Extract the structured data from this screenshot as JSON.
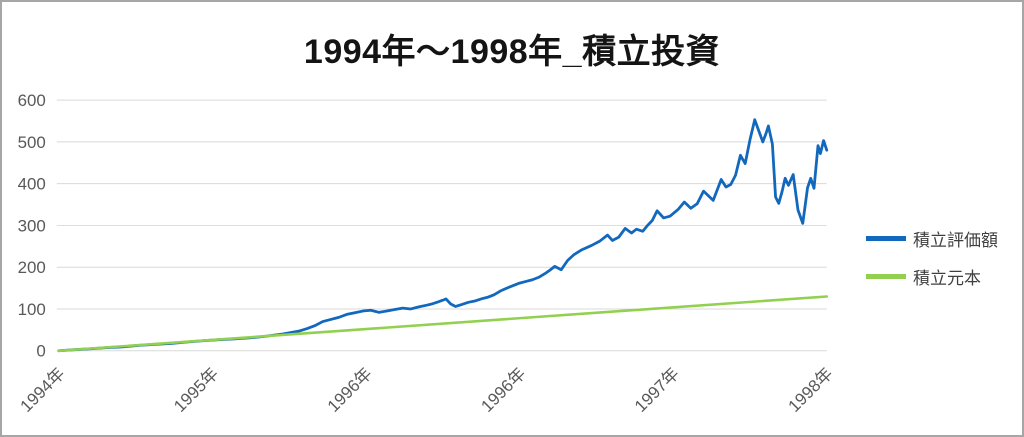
{
  "chart_data": {
    "type": "line",
    "title": "1994年〜1998年_積立投資",
    "x_axis": {
      "unit": "months since Jan 1994",
      "max_month": 48,
      "tick_months": [
        0,
        9.6,
        19.2,
        28.8,
        38.4,
        48
      ],
      "tick_labels": [
        "1994年",
        "1995年",
        "1996年",
        "1996年",
        "1997年",
        "1998年"
      ]
    },
    "y_axis": {
      "min": 0,
      "max": 600,
      "ticks": [
        0,
        100,
        200,
        300,
        400,
        500,
        600
      ]
    },
    "grid": "horizontal",
    "legend_position": "right",
    "series": [
      {
        "name": "積立評価額",
        "color": "#1268bd",
        "points": [
          [
            0,
            0
          ],
          [
            1,
            2.5
          ],
          [
            2,
            5
          ],
          [
            3,
            7.5
          ],
          [
            4,
            9.5
          ],
          [
            5,
            13
          ],
          [
            6,
            15.5
          ],
          [
            7,
            17.5
          ],
          [
            8,
            21
          ],
          [
            9,
            24
          ],
          [
            10,
            26.5
          ],
          [
            11,
            28.5
          ],
          [
            12,
            31
          ],
          [
            13,
            35
          ],
          [
            14,
            40
          ],
          [
            15,
            47
          ],
          [
            15.5,
            53
          ],
          [
            16,
            60
          ],
          [
            16.5,
            70
          ],
          [
            17,
            75
          ],
          [
            17.5,
            80
          ],
          [
            18,
            87
          ],
          [
            18.5,
            91
          ],
          [
            19,
            95
          ],
          [
            19.5,
            97
          ],
          [
            20,
            92
          ],
          [
            20.5,
            95
          ],
          [
            21,
            99
          ],
          [
            21.5,
            102
          ],
          [
            22,
            100
          ],
          [
            22.5,
            105
          ],
          [
            23,
            109
          ],
          [
            23.3,
            112
          ],
          [
            23.7,
            117
          ],
          [
            24,
            121
          ],
          [
            24.2,
            124
          ],
          [
            24.5,
            112
          ],
          [
            24.8,
            106
          ],
          [
            25.2,
            111
          ],
          [
            25.6,
            116
          ],
          [
            26,
            119
          ],
          [
            26.4,
            124
          ],
          [
            26.8,
            128
          ],
          [
            27.2,
            134
          ],
          [
            27.6,
            143
          ],
          [
            28,
            150
          ],
          [
            28.4,
            156
          ],
          [
            28.8,
            162
          ],
          [
            29.2,
            166
          ],
          [
            29.6,
            170
          ],
          [
            30,
            176
          ],
          [
            30.4,
            185
          ],
          [
            30.7,
            193
          ],
          [
            31,
            202
          ],
          [
            31.4,
            194
          ],
          [
            31.8,
            216
          ],
          [
            32.2,
            230
          ],
          [
            32.7,
            242
          ],
          [
            33.3,
            252
          ],
          [
            33.8,
            262
          ],
          [
            34.3,
            277
          ],
          [
            34.6,
            264
          ],
          [
            35,
            272
          ],
          [
            35.4,
            293
          ],
          [
            35.8,
            282
          ],
          [
            36.1,
            291
          ],
          [
            36.5,
            286
          ],
          [
            36.8,
            300
          ],
          [
            37.1,
            312
          ],
          [
            37.4,
            335
          ],
          [
            37.8,
            318
          ],
          [
            38.2,
            322
          ],
          [
            38.7,
            338
          ],
          [
            39.1,
            356
          ],
          [
            39.5,
            341
          ],
          [
            39.9,
            352
          ],
          [
            40.3,
            382
          ],
          [
            40.9,
            360
          ],
          [
            41.4,
            410
          ],
          [
            41.7,
            392
          ],
          [
            42,
            398
          ],
          [
            42.3,
            420
          ],
          [
            42.6,
            468
          ],
          [
            42.9,
            448
          ],
          [
            43.2,
            505
          ],
          [
            43.5,
            553
          ],
          [
            43.7,
            532
          ],
          [
            44,
            500
          ],
          [
            44.2,
            520
          ],
          [
            44.35,
            538
          ],
          [
            44.6,
            495
          ],
          [
            44.8,
            368
          ],
          [
            45,
            353
          ],
          [
            45.2,
            380
          ],
          [
            45.4,
            413
          ],
          [
            45.6,
            396
          ],
          [
            45.9,
            422
          ],
          [
            46.2,
            337
          ],
          [
            46.5,
            305
          ],
          [
            46.8,
            390
          ],
          [
            47,
            413
          ],
          [
            47.2,
            389
          ],
          [
            47.45,
            491
          ],
          [
            47.6,
            472
          ],
          [
            47.8,
            503
          ],
          [
            48,
            480
          ]
        ]
      },
      {
        "name": "積立元本",
        "color": "#92d050",
        "points": [
          [
            0,
            0
          ],
          [
            48,
            130
          ]
        ]
      }
    ]
  }
}
